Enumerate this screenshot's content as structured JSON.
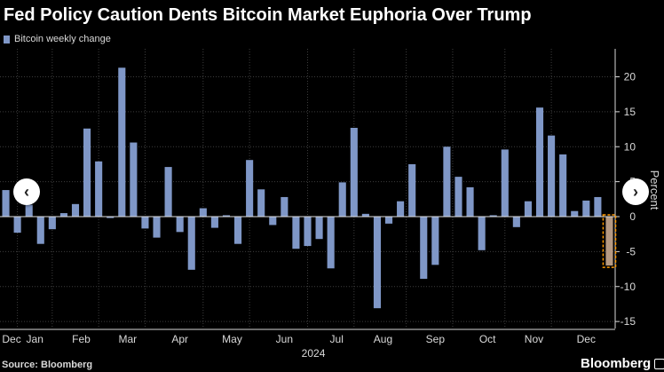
{
  "title": "Fed Policy Caution Dents Bitcoin Market Euphoria Over Trump",
  "source": "Source: Bloomberg",
  "brand": "Bloomberg",
  "nav": {
    "prev_symbol": "‹",
    "next_symbol": "›"
  },
  "colors": {
    "bar": "#7f97c7",
    "highlight_bar": "#b59a84",
    "highlight_border": "#ff9900",
    "grid": "#3d3d3d",
    "zero_line": "#e0e0e0",
    "axis_text": "#d9d9d9"
  },
  "chart_data": {
    "type": "bar",
    "title": "Fed Policy Caution Dents Bitcoin Market Euphoria Over Trump",
    "legend": [
      "Bitcoin weekly change"
    ],
    "ylabel": "Percent",
    "xlabel": "2024",
    "ylim": [
      -16,
      24
    ],
    "yticks": [
      -15,
      -10,
      -5,
      0,
      5,
      10,
      15,
      20
    ],
    "month_labels": [
      "Dec",
      "Jan",
      "Feb",
      "Mar",
      "Apr",
      "May",
      "Jun",
      "Jul",
      "Aug",
      "Sep",
      "Oct",
      "Nov",
      "Dec"
    ],
    "month_label_weeks": [
      0.5,
      2.5,
      6.5,
      10.5,
      15,
      19.5,
      24,
      28.5,
      32.5,
      37,
      41.5,
      45.5,
      50
    ],
    "series": [
      {
        "name": "Bitcoin weekly change",
        "values": [
          3.8,
          -2.3,
          1.7,
          -3.9,
          -1.8,
          0.5,
          1.8,
          12.6,
          7.9,
          -0.2,
          21.3,
          10.6,
          -1.7,
          -3.0,
          7.1,
          -2.2,
          -7.6,
          1.2,
          -1.6,
          0.2,
          -3.9,
          8.1,
          3.9,
          -1.2,
          2.8,
          -4.6,
          -4.2,
          -3.2,
          -7.4,
          4.9,
          12.7,
          0.4,
          -13.1,
          -1.0,
          2.2,
          7.5,
          -8.9,
          -6.9,
          10.0,
          5.7,
          4.2,
          -4.8,
          0.2,
          9.6,
          -1.5,
          2.2,
          15.6,
          11.6,
          8.9,
          0.8,
          2.3,
          2.8,
          -7.0
        ]
      }
    ],
    "highlight_index": 52
  }
}
